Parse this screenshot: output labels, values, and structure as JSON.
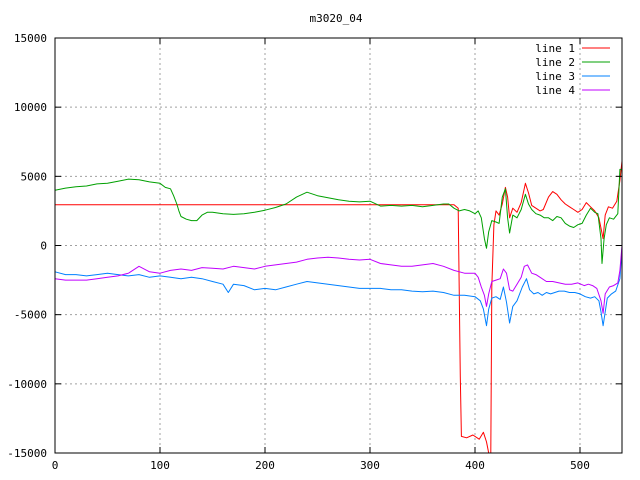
{
  "chart_data": {
    "type": "line",
    "title": "m3020_04",
    "xlabel": "",
    "ylabel": "",
    "xlim": [
      0,
      540
    ],
    "ylim": [
      -15000,
      15000
    ],
    "xticks": [
      0,
      100,
      200,
      300,
      400,
      500
    ],
    "yticks": [
      -15000,
      -10000,
      -5000,
      0,
      5000,
      10000,
      15000
    ],
    "grid": true,
    "legend_position": "top-right",
    "series": [
      {
        "name": "line 1",
        "color": "#ff0000",
        "points": [
          [
            0,
            2950
          ],
          [
            100,
            2950
          ],
          [
            200,
            2950
          ],
          [
            300,
            2950
          ],
          [
            370,
            2950
          ],
          [
            380,
            2950
          ],
          [
            384,
            2700
          ],
          [
            386,
            -9500
          ],
          [
            387,
            -13800
          ],
          [
            392,
            -13900
          ],
          [
            398,
            -13700
          ],
          [
            404,
            -14000
          ],
          [
            408,
            -13500
          ],
          [
            411,
            -14200
          ],
          [
            413,
            -15000
          ],
          [
            415,
            -15000
          ],
          [
            416,
            -3000
          ],
          [
            418,
            1500
          ],
          [
            420,
            2500
          ],
          [
            423,
            2200
          ],
          [
            426,
            3000
          ],
          [
            429,
            4200
          ],
          [
            431,
            3500
          ],
          [
            433,
            2000
          ],
          [
            436,
            2700
          ],
          [
            440,
            2400
          ],
          [
            444,
            3100
          ],
          [
            448,
            4500
          ],
          [
            451,
            3800
          ],
          [
            454,
            2900
          ],
          [
            458,
            2700
          ],
          [
            462,
            2500
          ],
          [
            465,
            2600
          ],
          [
            470,
            3500
          ],
          [
            474,
            3900
          ],
          [
            478,
            3700
          ],
          [
            482,
            3300
          ],
          [
            486,
            3000
          ],
          [
            490,
            2800
          ],
          [
            494,
            2600
          ],
          [
            498,
            2400
          ],
          [
            502,
            2600
          ],
          [
            506,
            3100
          ],
          [
            510,
            2800
          ],
          [
            514,
            2500
          ],
          [
            518,
            2000
          ],
          [
            522,
            500
          ],
          [
            524,
            2200
          ],
          [
            527,
            2800
          ],
          [
            531,
            2700
          ],
          [
            535,
            3200
          ],
          [
            538,
            4700
          ],
          [
            540,
            6100
          ]
        ]
      },
      {
        "name": "line 2",
        "color": "#00a000",
        "points": [
          [
            0,
            4000
          ],
          [
            10,
            4150
          ],
          [
            20,
            4250
          ],
          [
            30,
            4300
          ],
          [
            40,
            4450
          ],
          [
            50,
            4500
          ],
          [
            60,
            4650
          ],
          [
            70,
            4800
          ],
          [
            80,
            4750
          ],
          [
            90,
            4600
          ],
          [
            100,
            4500
          ],
          [
            105,
            4200
          ],
          [
            110,
            4100
          ],
          [
            113,
            3600
          ],
          [
            116,
            3000
          ],
          [
            118,
            2500
          ],
          [
            120,
            2100
          ],
          [
            125,
            1900
          ],
          [
            130,
            1800
          ],
          [
            135,
            1800
          ],
          [
            140,
            2200
          ],
          [
            145,
            2400
          ],
          [
            150,
            2400
          ],
          [
            160,
            2300
          ],
          [
            170,
            2250
          ],
          [
            180,
            2300
          ],
          [
            190,
            2400
          ],
          [
            200,
            2550
          ],
          [
            210,
            2750
          ],
          [
            220,
            3000
          ],
          [
            230,
            3500
          ],
          [
            240,
            3850
          ],
          [
            250,
            3600
          ],
          [
            260,
            3450
          ],
          [
            270,
            3300
          ],
          [
            280,
            3200
          ],
          [
            290,
            3150
          ],
          [
            300,
            3200
          ],
          [
            310,
            2850
          ],
          [
            320,
            2900
          ],
          [
            330,
            2850
          ],
          [
            340,
            2900
          ],
          [
            350,
            2800
          ],
          [
            360,
            2900
          ],
          [
            370,
            3000
          ],
          [
            375,
            3000
          ],
          [
            380,
            2700
          ],
          [
            385,
            2500
          ],
          [
            390,
            2600
          ],
          [
            395,
            2500
          ],
          [
            400,
            2300
          ],
          [
            403,
            2500
          ],
          [
            406,
            2000
          ],
          [
            409,
            500
          ],
          [
            411,
            -200
          ],
          [
            413,
            1000
          ],
          [
            416,
            1800
          ],
          [
            420,
            1700
          ],
          [
            423,
            1600
          ],
          [
            426,
            3500
          ],
          [
            429,
            4100
          ],
          [
            431,
            2000
          ],
          [
            433,
            900
          ],
          [
            436,
            2200
          ],
          [
            440,
            2000
          ],
          [
            444,
            2600
          ],
          [
            448,
            3700
          ],
          [
            451,
            3000
          ],
          [
            454,
            2600
          ],
          [
            458,
            2300
          ],
          [
            462,
            2200
          ],
          [
            466,
            2000
          ],
          [
            470,
            2000
          ],
          [
            474,
            1800
          ],
          [
            478,
            2100
          ],
          [
            482,
            2000
          ],
          [
            486,
            1600
          ],
          [
            490,
            1400
          ],
          [
            494,
            1300
          ],
          [
            498,
            1500
          ],
          [
            502,
            1600
          ],
          [
            506,
            2200
          ],
          [
            510,
            2700
          ],
          [
            514,
            2400
          ],
          [
            517,
            2300
          ],
          [
            520,
            500
          ],
          [
            521,
            -1300
          ],
          [
            523,
            500
          ],
          [
            525,
            1500
          ],
          [
            528,
            2000
          ],
          [
            532,
            1900
          ],
          [
            536,
            2300
          ],
          [
            538,
            5500
          ],
          [
            540,
            5500
          ]
        ]
      },
      {
        "name": "line 3",
        "color": "#0080ff",
        "points": [
          [
            0,
            -1900
          ],
          [
            10,
            -2100
          ],
          [
            20,
            -2100
          ],
          [
            30,
            -2200
          ],
          [
            40,
            -2100
          ],
          [
            50,
            -2000
          ],
          [
            60,
            -2100
          ],
          [
            70,
            -2200
          ],
          [
            80,
            -2100
          ],
          [
            90,
            -2300
          ],
          [
            100,
            -2200
          ],
          [
            110,
            -2300
          ],
          [
            120,
            -2400
          ],
          [
            130,
            -2300
          ],
          [
            140,
            -2400
          ],
          [
            150,
            -2600
          ],
          [
            160,
            -2800
          ],
          [
            165,
            -3400
          ],
          [
            170,
            -2800
          ],
          [
            180,
            -2900
          ],
          [
            190,
            -3200
          ],
          [
            200,
            -3100
          ],
          [
            210,
            -3200
          ],
          [
            220,
            -3000
          ],
          [
            230,
            -2800
          ],
          [
            240,
            -2600
          ],
          [
            250,
            -2700
          ],
          [
            260,
            -2800
          ],
          [
            270,
            -2900
          ],
          [
            280,
            -3000
          ],
          [
            290,
            -3100
          ],
          [
            300,
            -3100
          ],
          [
            310,
            -3100
          ],
          [
            320,
            -3200
          ],
          [
            330,
            -3200
          ],
          [
            340,
            -3300
          ],
          [
            350,
            -3350
          ],
          [
            360,
            -3300
          ],
          [
            370,
            -3400
          ],
          [
            380,
            -3600
          ],
          [
            390,
            -3600
          ],
          [
            400,
            -3700
          ],
          [
            405,
            -4000
          ],
          [
            408,
            -4600
          ],
          [
            411,
            -5800
          ],
          [
            413,
            -4600
          ],
          [
            416,
            -3800
          ],
          [
            420,
            -3700
          ],
          [
            424,
            -3900
          ],
          [
            427,
            -3000
          ],
          [
            430,
            -4100
          ],
          [
            433,
            -5600
          ],
          [
            436,
            -4400
          ],
          [
            440,
            -4000
          ],
          [
            445,
            -3000
          ],
          [
            449,
            -2400
          ],
          [
            452,
            -3200
          ],
          [
            456,
            -3500
          ],
          [
            460,
            -3400
          ],
          [
            464,
            -3600
          ],
          [
            468,
            -3400
          ],
          [
            472,
            -3500
          ],
          [
            476,
            -3400
          ],
          [
            480,
            -3300
          ],
          [
            485,
            -3300
          ],
          [
            490,
            -3400
          ],
          [
            495,
            -3400
          ],
          [
            500,
            -3500
          ],
          [
            505,
            -3700
          ],
          [
            510,
            -3800
          ],
          [
            514,
            -3700
          ],
          [
            518,
            -4000
          ],
          [
            520,
            -4800
          ],
          [
            522,
            -5800
          ],
          [
            524,
            -4800
          ],
          [
            526,
            -3800
          ],
          [
            530,
            -3500
          ],
          [
            534,
            -3300
          ],
          [
            538,
            -2400
          ],
          [
            540,
            -200
          ]
        ]
      },
      {
        "name": "line 4",
        "color": "#c000ff",
        "points": [
          [
            0,
            -2400
          ],
          [
            10,
            -2500
          ],
          [
            20,
            -2500
          ],
          [
            30,
            -2500
          ],
          [
            40,
            -2400
          ],
          [
            50,
            -2300
          ],
          [
            60,
            -2200
          ],
          [
            70,
            -2000
          ],
          [
            80,
            -1500
          ],
          [
            90,
            -1900
          ],
          [
            100,
            -2000
          ],
          [
            110,
            -1800
          ],
          [
            120,
            -1700
          ],
          [
            130,
            -1800
          ],
          [
            140,
            -1600
          ],
          [
            150,
            -1650
          ],
          [
            160,
            -1700
          ],
          [
            170,
            -1500
          ],
          [
            180,
            -1600
          ],
          [
            190,
            -1700
          ],
          [
            200,
            -1500
          ],
          [
            210,
            -1400
          ],
          [
            220,
            -1300
          ],
          [
            230,
            -1200
          ],
          [
            240,
            -1000
          ],
          [
            250,
            -900
          ],
          [
            260,
            -850
          ],
          [
            270,
            -900
          ],
          [
            280,
            -1000
          ],
          [
            290,
            -1050
          ],
          [
            300,
            -1000
          ],
          [
            310,
            -1300
          ],
          [
            320,
            -1400
          ],
          [
            330,
            -1500
          ],
          [
            340,
            -1500
          ],
          [
            350,
            -1400
          ],
          [
            360,
            -1300
          ],
          [
            370,
            -1500
          ],
          [
            380,
            -1800
          ],
          [
            390,
            -2000
          ],
          [
            400,
            -2000
          ],
          [
            403,
            -2300
          ],
          [
            406,
            -3000
          ],
          [
            409,
            -3600
          ],
          [
            411,
            -4400
          ],
          [
            413,
            -3500
          ],
          [
            416,
            -2600
          ],
          [
            420,
            -2500
          ],
          [
            424,
            -2400
          ],
          [
            427,
            -1700
          ],
          [
            430,
            -2000
          ],
          [
            433,
            -3200
          ],
          [
            436,
            -3300
          ],
          [
            440,
            -2800
          ],
          [
            444,
            -2300
          ],
          [
            447,
            -1500
          ],
          [
            450,
            -1400
          ],
          [
            454,
            -2000
          ],
          [
            458,
            -2100
          ],
          [
            462,
            -2300
          ],
          [
            468,
            -2600
          ],
          [
            474,
            -2600
          ],
          [
            480,
            -2700
          ],
          [
            486,
            -2800
          ],
          [
            492,
            -2800
          ],
          [
            498,
            -2700
          ],
          [
            504,
            -2900
          ],
          [
            508,
            -2800
          ],
          [
            512,
            -2900
          ],
          [
            516,
            -3100
          ],
          [
            520,
            -4000
          ],
          [
            522,
            -4900
          ],
          [
            524,
            -3500
          ],
          [
            528,
            -3000
          ],
          [
            532,
            -2900
          ],
          [
            536,
            -2700
          ],
          [
            538,
            -1800
          ],
          [
            540,
            0
          ]
        ]
      }
    ]
  }
}
